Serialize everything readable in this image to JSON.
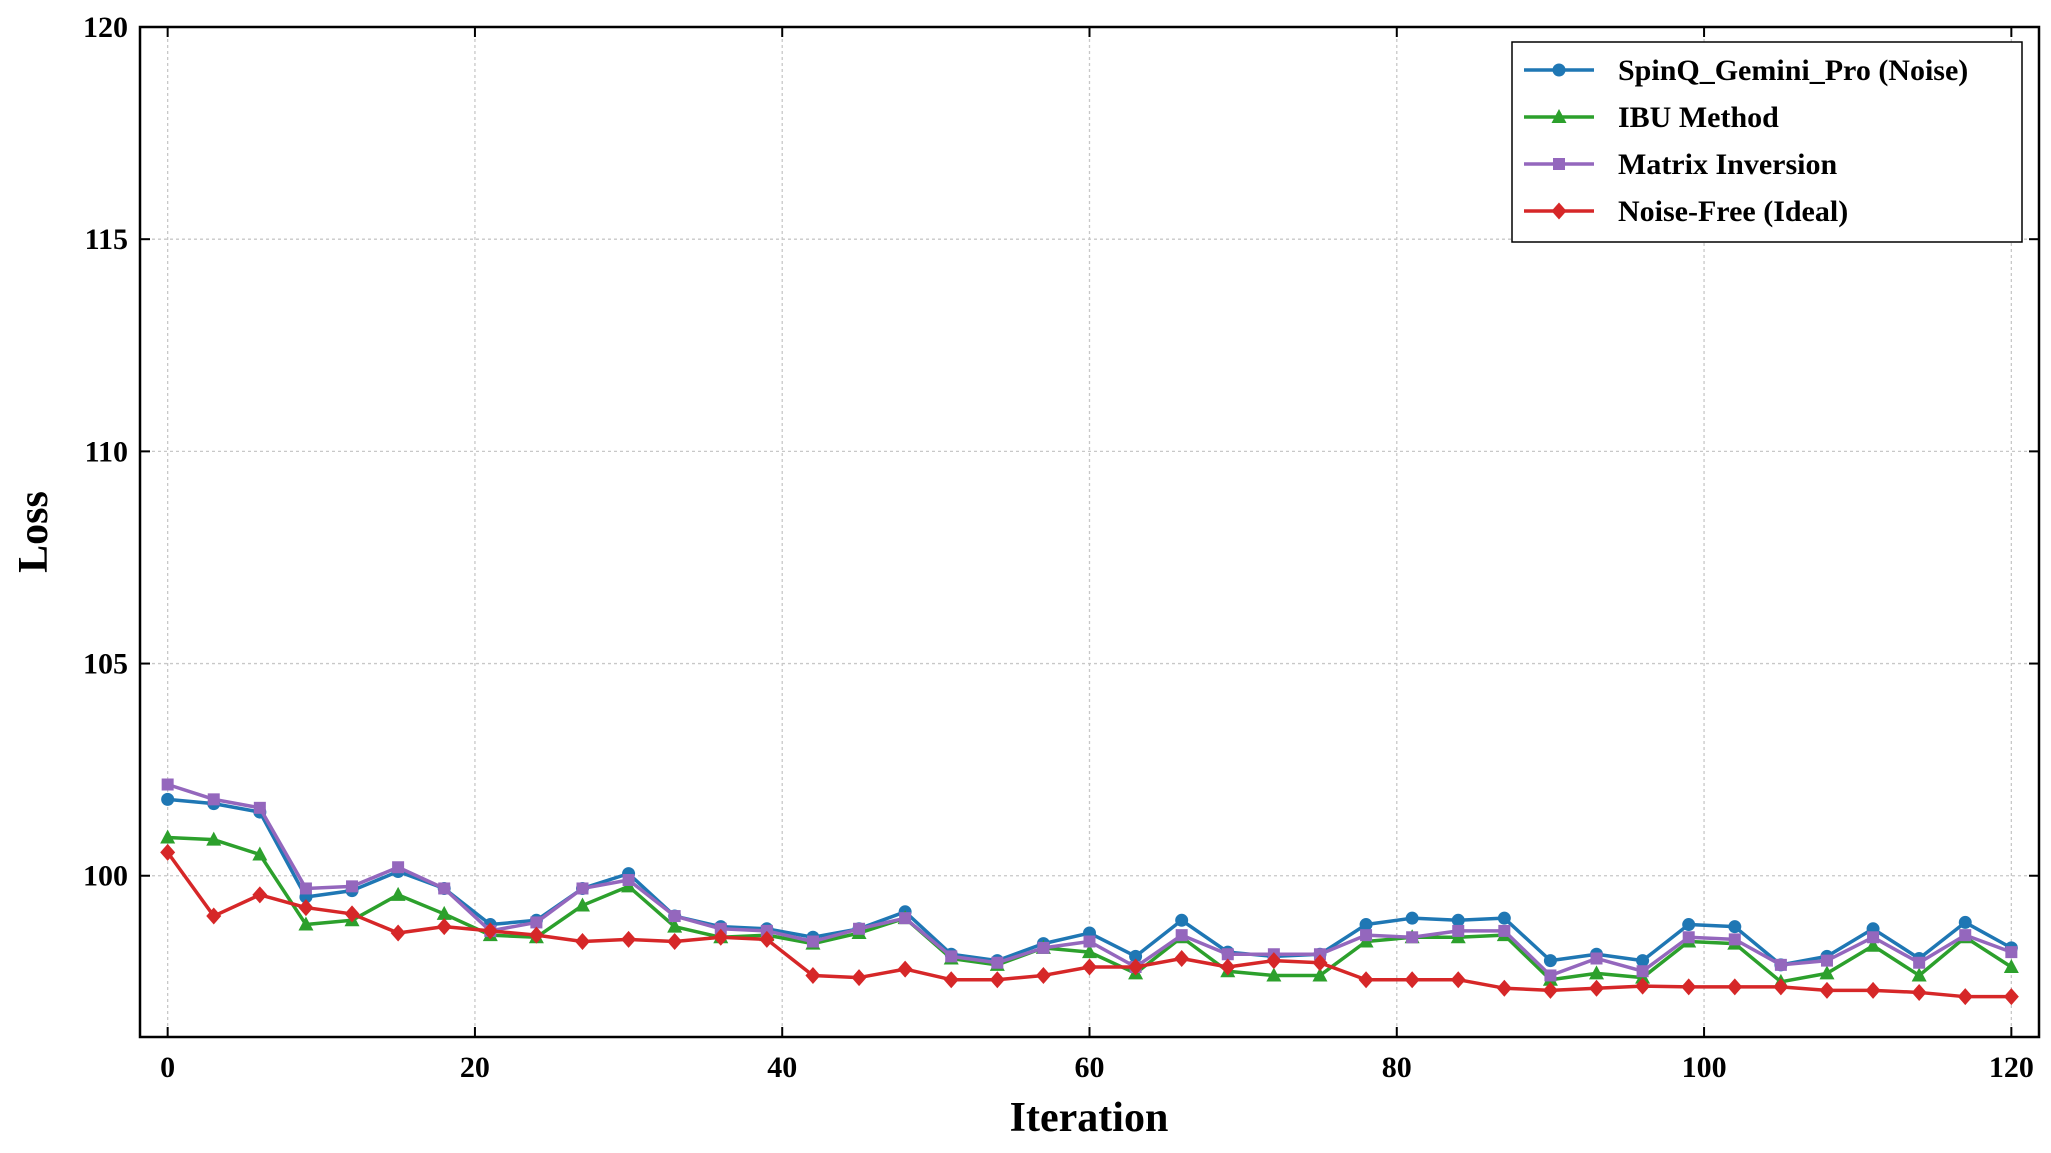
{
  "chart_data": {
    "type": "line",
    "title": "",
    "xlabel": "Iteration",
    "ylabel": "Loss",
    "xlim": [
      -1.8,
      121.8
    ],
    "ylim": [
      96.2,
      120
    ],
    "xticks": [
      0,
      20,
      40,
      60,
      80,
      100,
      120
    ],
    "yticks": [
      100,
      105,
      110,
      115,
      120
    ],
    "grid": true,
    "legend_position": "top-right",
    "x": [
      0,
      3,
      6,
      9,
      12,
      15,
      18,
      21,
      24,
      27,
      30,
      33,
      36,
      39,
      42,
      45,
      48,
      51,
      54,
      57,
      60,
      63,
      66,
      69,
      72,
      75,
      78,
      81,
      84,
      87,
      90,
      93,
      96,
      99,
      102,
      105,
      108,
      111,
      114,
      117,
      120
    ],
    "series": [
      {
        "name": "SpinQ_Gemini_Pro (Noise)",
        "color": "#1f77b4",
        "marker": "circle",
        "values": [
          101.8,
          101.7,
          101.5,
          99.5,
          99.65,
          100.1,
          99.7,
          98.85,
          98.95,
          99.7,
          100.05,
          99.05,
          98.8,
          98.75,
          98.55,
          98.75,
          99.15,
          98.15,
          98.0,
          98.4,
          98.65,
          98.1,
          98.95,
          98.2,
          98.1,
          98.15,
          98.85,
          99.0,
          98.95,
          99.0,
          98.0,
          98.15,
          98.0,
          98.85,
          98.8,
          97.9,
          98.1,
          98.75,
          98.05,
          98.9,
          98.3
        ]
      },
      {
        "name": "IBU Method",
        "color": "#2ca02c",
        "marker": "triangle",
        "values": [
          100.9,
          100.85,
          100.5,
          98.85,
          98.95,
          99.55,
          99.1,
          98.6,
          98.55,
          99.3,
          99.75,
          98.8,
          98.55,
          98.6,
          98.4,
          98.65,
          99.0,
          98.05,
          97.9,
          98.3,
          98.2,
          97.7,
          98.55,
          97.75,
          97.65,
          97.65,
          98.45,
          98.55,
          98.55,
          98.6,
          97.55,
          97.7,
          97.6,
          98.45,
          98.4,
          97.5,
          97.7,
          98.35,
          97.65,
          98.55,
          97.85
        ]
      },
      {
        "name": "Matrix Inversion",
        "color": "#9467bd",
        "marker": "square",
        "values": [
          102.15,
          101.8,
          101.6,
          99.7,
          99.75,
          100.2,
          99.7,
          98.7,
          98.9,
          99.7,
          99.9,
          99.05,
          98.75,
          98.7,
          98.45,
          98.75,
          99.0,
          98.1,
          97.95,
          98.3,
          98.45,
          97.85,
          98.6,
          98.15,
          98.15,
          98.15,
          98.6,
          98.55,
          98.7,
          98.7,
          97.65,
          98.05,
          97.75,
          98.55,
          98.5,
          97.9,
          98.0,
          98.55,
          97.95,
          98.6,
          98.2
        ]
      },
      {
        "name": "Noise-Free (Ideal)",
        "color": "#d62728",
        "marker": "diamond",
        "values": [
          100.55,
          99.05,
          99.55,
          99.25,
          99.1,
          98.65,
          98.8,
          98.7,
          98.6,
          98.45,
          98.5,
          98.45,
          98.55,
          98.5,
          97.65,
          97.6,
          97.8,
          97.55,
          97.55,
          97.65,
          97.85,
          97.85,
          98.05,
          97.85,
          98.0,
          97.95,
          97.55,
          97.55,
          97.55,
          97.35,
          97.3,
          97.35,
          97.4,
          97.38,
          97.38,
          97.38,
          97.3,
          97.3,
          97.25,
          97.15,
          97.15
        ]
      }
    ]
  }
}
